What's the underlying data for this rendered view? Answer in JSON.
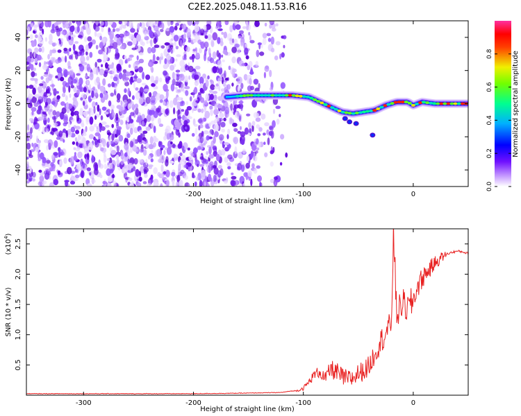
{
  "figure": {
    "title": "C2E2.2025.048.11.53.R16"
  },
  "chart_data": [
    {
      "type": "heatmap",
      "title": "C2E2.2025.048.11.53.R16",
      "xlabel": "Height of straight line (km)",
      "ylabel": "Frequency (Hz)",
      "xlim": [
        -352,
        50
      ],
      "ylim": [
        -50,
        50
      ],
      "x_ticks": [
        -300,
        -200,
        -100,
        0
      ],
      "y_ticks": [
        -40,
        -20,
        0,
        20,
        40
      ],
      "grid": false,
      "description_values": {
        "noise_region_x": [
          -352,
          -130
        ],
        "signal_track": [
          {
            "x": -170,
            "y": 4
          },
          {
            "x": -150,
            "y": 5
          },
          {
            "x": -130,
            "y": 5
          },
          {
            "x": -110,
            "y": 5
          },
          {
            "x": -95,
            "y": 4
          },
          {
            "x": -85,
            "y": 1
          },
          {
            "x": -75,
            "y": -2
          },
          {
            "x": -65,
            "y": -5
          },
          {
            "x": -55,
            "y": -6
          },
          {
            "x": -45,
            "y": -5
          },
          {
            "x": -35,
            "y": -4
          },
          {
            "x": -25,
            "y": -1
          },
          {
            "x": -15,
            "y": 1
          },
          {
            "x": -5,
            "y": 1
          },
          {
            "x": 0,
            "y": -1
          },
          {
            "x": 8,
            "y": 1
          },
          {
            "x": 20,
            "y": 0
          },
          {
            "x": 35,
            "y": 0
          },
          {
            "x": 50,
            "y": 0
          }
        ]
      },
      "colorbar": {
        "label": "Normalized spectral amplitude",
        "range": [
          0.0,
          1.0
        ],
        "ticks": [
          "0.0",
          "0.2",
          "0.4",
          "0.6",
          "0.8"
        ],
        "colormap": [
          "#ffffff",
          "#a040ff",
          "#0000ff",
          "#00c0ff",
          "#00ff80",
          "#c0ff00",
          "#ffd000",
          "#ff0000",
          "#ff40a0"
        ]
      }
    },
    {
      "type": "line",
      "xlabel": "Height of straight line (km)",
      "ylabel": "SNR (10 * v/v)",
      "y_scale_label": "(x10",
      "y_scale_exp": "4",
      "xlim": [
        -352,
        50
      ],
      "ylim": [
        0,
        2.75
      ],
      "x_ticks": [
        -300,
        -200,
        -100,
        0
      ],
      "y_ticks": [
        "0.5",
        "1.0",
        "1.5",
        "2.0",
        "2.5"
      ],
      "grid": false,
      "series": [
        {
          "color": "#e82020",
          "x": [
            -352,
            -300,
            -250,
            -200,
            -150,
            -120,
            -105,
            -100,
            -95,
            -90,
            -85,
            -80,
            -75,
            -70,
            -65,
            -60,
            -55,
            -50,
            -45,
            -40,
            -35,
            -30,
            -25,
            -20,
            -18,
            -15,
            -10,
            -5,
            0,
            5,
            10,
            15,
            20,
            25,
            30,
            35,
            40,
            45,
            50
          ],
          "y": [
            0.02,
            0.02,
            0.02,
            0.02,
            0.03,
            0.04,
            0.08,
            0.12,
            0.22,
            0.35,
            0.4,
            0.28,
            0.45,
            0.4,
            0.32,
            0.28,
            0.3,
            0.38,
            0.42,
            0.5,
            0.72,
            0.9,
            1.05,
            1.2,
            2.7,
            1.35,
            1.55,
            1.45,
            1.6,
            1.85,
            2.0,
            2.1,
            2.2,
            2.28,
            2.33,
            2.36,
            2.38,
            2.37,
            2.34
          ]
        }
      ]
    }
  ]
}
